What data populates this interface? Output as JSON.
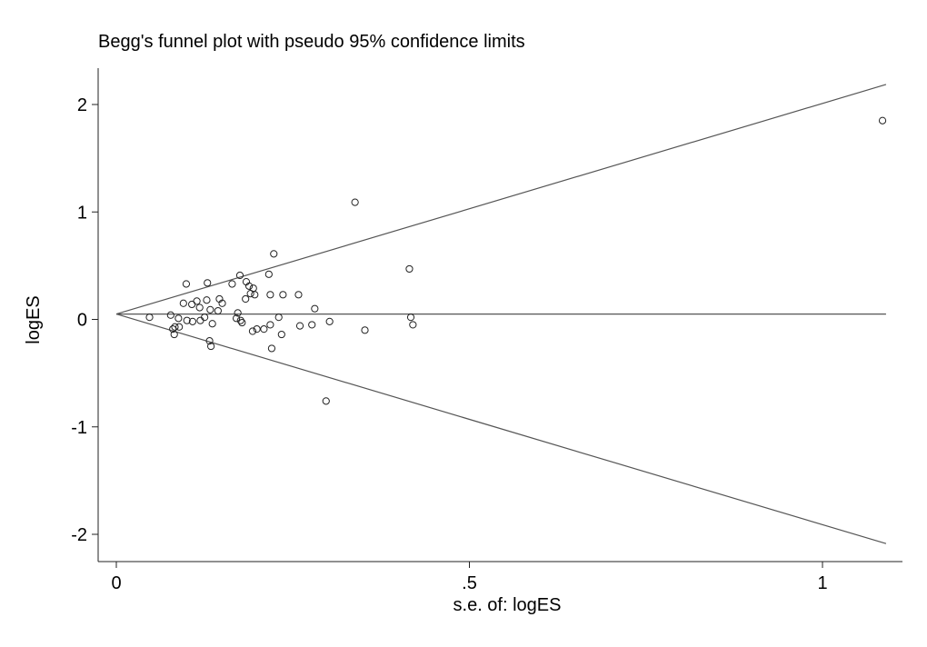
{
  "chart_data": {
    "type": "scatter",
    "title": "Begg's funnel plot with pseudo 95% confidence limits",
    "xlabel": "s.e. of: logES",
    "ylabel": "logES",
    "xlim": [
      -0.025,
      1.12
    ],
    "ylim": [
      -2.25,
      2.35
    ],
    "x_ticks": [
      {
        "value": 0,
        "label": "0"
      },
      {
        "value": 0.5,
        "label": ".5"
      },
      {
        "value": 1,
        "label": "1"
      }
    ],
    "y_ticks": [
      {
        "value": 2,
        "label": "2"
      },
      {
        "value": 1,
        "label": "1"
      },
      {
        "value": 0,
        "label": "0"
      },
      {
        "value": -1,
        "label": "-1"
      },
      {
        "value": -2,
        "label": "-2"
      }
    ],
    "pooled_estimate": 0.05,
    "pseudo_ci_z": 1.96,
    "line_x_max": 1.09,
    "grid": false,
    "points": [
      [
        0.047,
        0.02
      ],
      [
        0.077,
        0.04
      ],
      [
        0.08,
        -0.09
      ],
      [
        0.082,
        -0.14
      ],
      [
        0.083,
        -0.07
      ],
      [
        0.088,
        0.01
      ],
      [
        0.089,
        -0.07
      ],
      [
        0.095,
        0.15
      ],
      [
        0.099,
        0.33
      ],
      [
        0.1,
        -0.01
      ],
      [
        0.107,
        0.14
      ],
      [
        0.108,
        -0.02
      ],
      [
        0.114,
        0.17
      ],
      [
        0.118,
        0.11
      ],
      [
        0.119,
        -0.01
      ],
      [
        0.125,
        0.02
      ],
      [
        0.128,
        0.18
      ],
      [
        0.129,
        0.34
      ],
      [
        0.132,
        -0.2
      ],
      [
        0.133,
        0.09
      ],
      [
        0.134,
        -0.25
      ],
      [
        0.136,
        -0.04
      ],
      [
        0.144,
        0.08
      ],
      [
        0.146,
        0.19
      ],
      [
        0.15,
        0.15
      ],
      [
        0.164,
        0.33
      ],
      [
        0.17,
        0.01
      ],
      [
        0.172,
        0.06
      ],
      [
        0.175,
        0.41
      ],
      [
        0.176,
        -0.01
      ],
      [
        0.178,
        -0.03
      ],
      [
        0.183,
        0.19
      ],
      [
        0.184,
        0.35
      ],
      [
        0.188,
        0.31
      ],
      [
        0.19,
        0.24
      ],
      [
        0.193,
        -0.11
      ],
      [
        0.194,
        0.29
      ],
      [
        0.196,
        0.23
      ],
      [
        0.199,
        -0.09
      ],
      [
        0.209,
        -0.09
      ],
      [
        0.216,
        0.42
      ],
      [
        0.218,
        0.23
      ],
      [
        0.218,
        -0.05
      ],
      [
        0.22,
        -0.27
      ],
      [
        0.223,
        0.61
      ],
      [
        0.23,
        0.02
      ],
      [
        0.234,
        -0.14
      ],
      [
        0.236,
        0.23
      ],
      [
        0.258,
        0.23
      ],
      [
        0.26,
        -0.06
      ],
      [
        0.277,
        -0.05
      ],
      [
        0.281,
        0.1
      ],
      [
        0.297,
        -0.76
      ],
      [
        0.302,
        -0.02
      ],
      [
        0.338,
        1.09
      ],
      [
        0.352,
        -0.1
      ],
      [
        0.415,
        0.47
      ],
      [
        0.417,
        0.02
      ],
      [
        0.42,
        -0.05
      ],
      [
        1.085,
        1.85
      ]
    ]
  }
}
